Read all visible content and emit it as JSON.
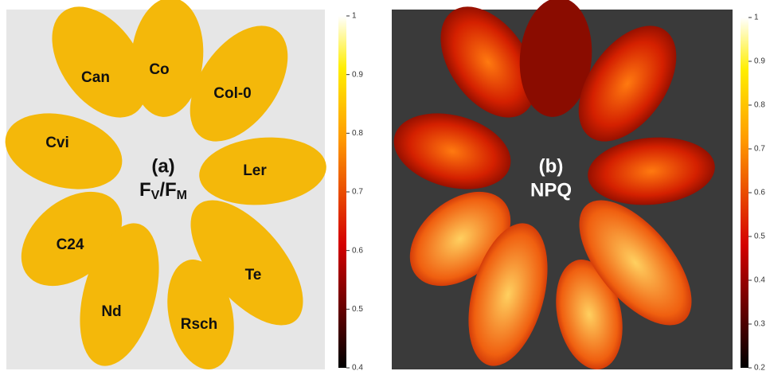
{
  "panels": [
    {
      "label": "(a)",
      "measure": [
        "F",
        "V",
        "/F",
        "M"
      ],
      "leaves": [
        "Can",
        "Co",
        "Col-0",
        "Cvi",
        "Ler",
        "C24",
        "Nd",
        "Rsch",
        "Te"
      ],
      "colorbar": {
        "lim": [
          0.4,
          1
        ],
        "ticks": [
          1,
          0.9,
          0.8,
          0.7,
          0.6,
          0.5,
          0.4
        ]
      }
    },
    {
      "label": "(b)",
      "measure": [
        "NPQ"
      ],
      "colorbar": {
        "lim": [
          0.2,
          1
        ],
        "ticks": [
          1,
          0.9,
          0.8,
          0.7,
          0.6,
          0.5,
          0.4,
          0.3,
          0.2
        ]
      }
    }
  ]
}
